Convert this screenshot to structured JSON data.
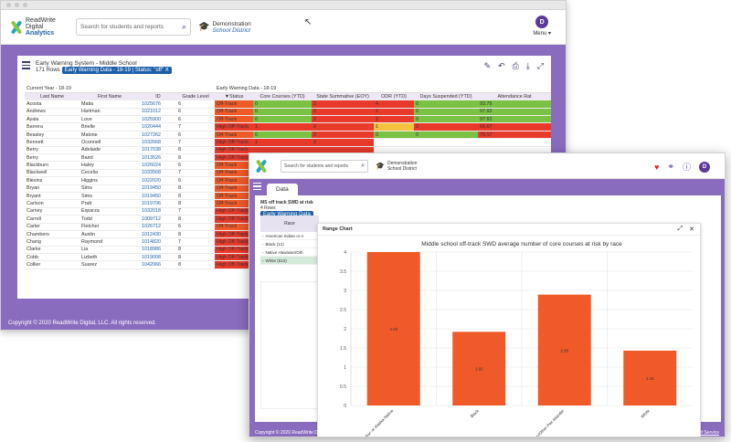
{
  "brand": {
    "line1": "ReadWrite",
    "line2": "Digital",
    "line3": "Analytics"
  },
  "search": {
    "placeholder": "Search for students and reports"
  },
  "district": {
    "line1": "Demonstration",
    "line2": "School District"
  },
  "user": {
    "initial": "D",
    "menu_label": "Menu ▾"
  },
  "report": {
    "title": "Early Warning System - Middle School",
    "rows": "171 Rows",
    "filter": "Early Warning Data - 18-19 | Status: \"off\"",
    "filter_close": "X",
    "group_left": "Current Year - 18-19",
    "group_right": "Early Warning Data - 18-19",
    "columns": [
      "Last Name",
      "First Name",
      "ID",
      "Grade Level",
      "▼Status",
      "Core Courses (YTD)",
      "State Summative (EOY)",
      "ODR (YTD)",
      "Days Suspended (YTD)",
      "Attendance Rat"
    ],
    "data": [
      [
        "Acosta",
        "Matia",
        "1025676",
        "6",
        "Off-Track",
        "0",
        "2",
        "4",
        "0",
        "93.75"
      ],
      [
        "Andrews",
        "Hartman",
        "1021012",
        "6",
        "Off-Track",
        "0",
        "2",
        "2",
        "0",
        "97.92"
      ],
      [
        "Ayala",
        "Love",
        "1025900",
        "6",
        "Off-Track",
        "0",
        "2",
        "2",
        "0",
        "97.92"
      ],
      [
        "Barrera",
        "Brielle",
        "1020444",
        "7",
        "High Off-Track",
        "1",
        "2",
        "1",
        "2",
        "66.67"
      ],
      [
        "Beasley",
        "Malone",
        "1027262",
        "6",
        "Off-Track",
        "0",
        "2",
        "0",
        "0",
        "79.17"
      ],
      [
        "Bennett",
        "Oconnell",
        "1032668",
        "7",
        "High Off-Track",
        "1",
        "2",
        "",
        "",
        ""
      ],
      [
        "Berry",
        "Adelaide",
        "1017038",
        "8",
        "High Off-Track",
        "",
        "",
        "",
        "",
        ""
      ],
      [
        "Berry",
        "Baird",
        "1013526",
        "8",
        "High Off-Track",
        "",
        "",
        "",
        "",
        ""
      ],
      [
        "Blackburn",
        "Haley",
        "1026024",
        "6",
        "Off-Track",
        "",
        "",
        "",
        "",
        ""
      ],
      [
        "Blackwell",
        "Cecelia",
        "1033568",
        "7",
        "Off-Track",
        "",
        "",
        "",
        "",
        ""
      ],
      [
        "Blevins",
        "Higgins",
        "1022020",
        "6",
        "Off-Track",
        "",
        "",
        "",
        "",
        ""
      ],
      [
        "Bryan",
        "Sims",
        "1019450",
        "8",
        "Off-Track",
        "",
        "",
        "",
        "",
        ""
      ],
      [
        "Bryant",
        "Sims",
        "1019450",
        "8",
        "Off-Track",
        "",
        "",
        "",
        "",
        ""
      ],
      [
        "Carlson",
        "Pratt",
        "1019706",
        "8",
        "Off-Track",
        "",
        "",
        "",
        "",
        ""
      ],
      [
        "Carney",
        "Esparza",
        "1032018",
        "7",
        "High Off-Track",
        "",
        "",
        "",
        "",
        ""
      ],
      [
        "Carroll",
        "Todd",
        "1009712",
        "8",
        "High Off-Track",
        "",
        "",
        "",
        "",
        ""
      ],
      [
        "Carter",
        "Fletcher",
        "1026712",
        "6",
        "Off-Track",
        "",
        "",
        "",
        "",
        ""
      ],
      [
        "Chambers",
        "Austin",
        "1012430",
        "8",
        "High Off-Track",
        "",
        "",
        "",
        "",
        ""
      ],
      [
        "Chang",
        "Raymond",
        "1014820",
        "7",
        "High Off-Track",
        "",
        "",
        "",
        "",
        ""
      ],
      [
        "Clarke",
        "Lia",
        "1018986",
        "8",
        "High Off-Track",
        "",
        "",
        "",
        "",
        ""
      ],
      [
        "Cobb",
        "Lizbeth",
        "1019008",
        "8",
        "High Off-Track",
        "",
        "",
        "",
        "",
        ""
      ],
      [
        "Collier",
        "Suarez",
        "1042066",
        "8",
        "High Off-Track",
        "",
        "",
        "",
        "",
        ""
      ]
    ]
  },
  "copyright": "Copyright © 2020 ReadWrite Digital, LLC. All rights reserved.",
  "front": {
    "tab": "Data",
    "report_title": "MS off track SWD at risk",
    "rows": "4 Rows",
    "filter": "Early Warning Data",
    "race_header": "Race",
    "race_items": [
      "American Indian or A",
      "Black (12)",
      "Native Hawaiian/Oth",
      "White (510)"
    ],
    "modal_title": "Range Chart",
    "footer_links": [
      "Privacy Policy",
      "Terms of Service"
    ],
    "footer_sep": "|"
  },
  "chart_data": {
    "type": "bar",
    "title": "Middle school off-track SWD average number of core courses at risk by race",
    "categories": [
      "American Indian or Alaska Native",
      "Black",
      "Native Hawaiian/Other Pac Islander",
      "White"
    ],
    "series": [
      {
        "name": "Core Courses (YTD)",
        "values": [
          4.0,
          1.92,
          2.89,
          1.43
        ]
      }
    ],
    "value_labels": [
      "4.00",
      "1.92",
      "2.89",
      "1.43"
    ],
    "ylim": [
      0,
      4
    ],
    "yticks": [
      0,
      0.5,
      1,
      1.5,
      2,
      2.5,
      3,
      3.5,
      4
    ],
    "grid": true,
    "legend": "bottom",
    "bar_color": "#f05a28"
  }
}
